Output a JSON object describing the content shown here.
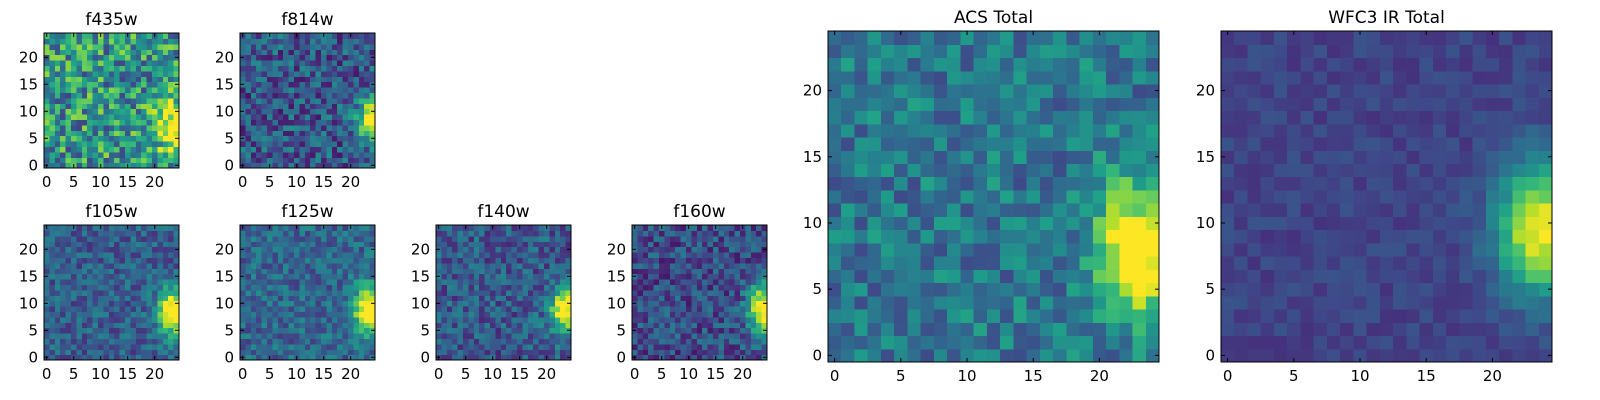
{
  "chart_data": [
    {
      "type": "heatmap",
      "title": "f435w",
      "xticks": [
        0,
        5,
        10,
        15,
        20
      ],
      "yticks": [
        0,
        5,
        10,
        15,
        20
      ],
      "grid_size": 25,
      "colormap": "viridis",
      "noise": 0.32,
      "blob": {
        "cx": 23.5,
        "cy": 7,
        "sx": 2.2,
        "sy": 3.2,
        "amp": 0.65
      },
      "base": 0.52,
      "seed": 11
    },
    {
      "type": "heatmap",
      "title": "f814w",
      "xticks": [
        0,
        5,
        10,
        15,
        20
      ],
      "yticks": [
        0,
        5,
        10,
        15,
        20
      ],
      "grid_size": 25,
      "colormap": "viridis",
      "noise": 0.22,
      "blob": {
        "cx": 24,
        "cy": 8.5,
        "sx": 1.8,
        "sy": 2.6,
        "amp": 0.9
      },
      "base": 0.28,
      "seed": 23
    },
    {
      "type": "heatmap",
      "title": "f105w",
      "xticks": [
        0,
        5,
        10,
        15,
        20
      ],
      "yticks": [
        0,
        5,
        10,
        15,
        20
      ],
      "grid_size": 25,
      "colormap": "viridis",
      "noise": 0.16,
      "blob": {
        "cx": 23.5,
        "cy": 8.5,
        "sx": 2.0,
        "sy": 3.0,
        "amp": 0.85
      },
      "base": 0.3,
      "seed": 37
    },
    {
      "type": "heatmap",
      "title": "f125w",
      "xticks": [
        0,
        5,
        10,
        15,
        20
      ],
      "yticks": [
        0,
        5,
        10,
        15,
        20
      ],
      "grid_size": 25,
      "colormap": "viridis",
      "noise": 0.16,
      "blob": {
        "cx": 23.5,
        "cy": 9,
        "sx": 2.0,
        "sy": 3.0,
        "amp": 0.85
      },
      "base": 0.33,
      "seed": 41
    },
    {
      "type": "heatmap",
      "title": "f140w",
      "xticks": [
        0,
        5,
        10,
        15,
        20
      ],
      "yticks": [
        0,
        5,
        10,
        15,
        20
      ],
      "grid_size": 25,
      "colormap": "viridis",
      "noise": 0.18,
      "blob": {
        "cx": 23.5,
        "cy": 9,
        "sx": 2.0,
        "sy": 3.0,
        "amp": 0.85
      },
      "base": 0.28,
      "seed": 53
    },
    {
      "type": "heatmap",
      "title": "f160w",
      "xticks": [
        0,
        5,
        10,
        15,
        20
      ],
      "yticks": [
        0,
        5,
        10,
        15,
        20
      ],
      "grid_size": 25,
      "colormap": "viridis",
      "noise": 0.18,
      "blob": {
        "cx": 24,
        "cy": 9,
        "sx": 2.0,
        "sy": 3.2,
        "amp": 0.9
      },
      "base": 0.24,
      "seed": 67
    },
    {
      "type": "heatmap",
      "title": "ACS Total",
      "xticks": [
        0,
        5,
        10,
        15,
        20
      ],
      "yticks": [
        0,
        5,
        10,
        15,
        20
      ],
      "grid_size": 25,
      "colormap": "viridis",
      "noise": 0.18,
      "blob": {
        "cx": 23,
        "cy": 8,
        "sx": 2.2,
        "sy": 3.4,
        "amp": 0.75
      },
      "base": 0.4,
      "seed": 79
    },
    {
      "type": "heatmap",
      "title": "WFC3 IR Total",
      "xticks": [
        0,
        5,
        10,
        15,
        20
      ],
      "yticks": [
        0,
        5,
        10,
        15,
        20
      ],
      "grid_size": 25,
      "colormap": "viridis",
      "noise": 0.06,
      "blob": {
        "cx": 23.5,
        "cy": 9.5,
        "sx": 2.2,
        "sy": 3.4,
        "amp": 0.8
      },
      "base": 0.2,
      "seed": 97
    }
  ]
}
